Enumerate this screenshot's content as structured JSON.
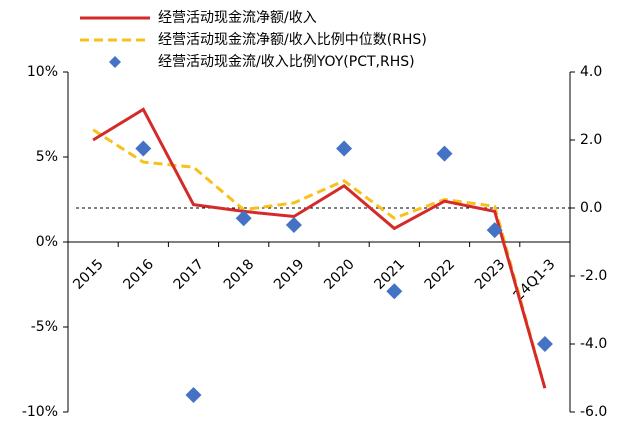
{
  "chart_data": {
    "type": "line",
    "categories": [
      "2015",
      "2016",
      "2017",
      "2018",
      "2019",
      "2020",
      "2021",
      "2022",
      "2023",
      "24Q1-3"
    ],
    "series": [
      {
        "name": "经营活动现金流净额/收入",
        "color": "#d42a2a",
        "type": "line",
        "dashed": false,
        "values": [
          6.0,
          7.8,
          2.2,
          1.8,
          1.5,
          3.3,
          0.8,
          2.4,
          1.8,
          -8.6
        ]
      },
      {
        "name": "经营活动现金流净额/收入比例中位数(RHS)",
        "color": "#f8c11a",
        "type": "line",
        "dashed": true,
        "axis": "y2",
        "values": [
          2.3,
          1.35,
          1.2,
          -0.05,
          0.15,
          0.8,
          -0.3,
          0.25,
          0.05,
          -5.3
        ]
      },
      {
        "name": "经营活动现金流/收入比例YOY(PCT,RHS)",
        "color": "#4472c4",
        "type": "scatter",
        "axis": "y2",
        "values": [
          null,
          1.75,
          -5.5,
          -0.3,
          -0.5,
          1.75,
          -2.45,
          1.6,
          -0.65,
          -4.0
        ]
      }
    ],
    "ylim": [
      -10,
      10
    ],
    "yticks": [
      {
        "value": -10,
        "label": "-10%"
      },
      {
        "value": -5,
        "label": "-5%"
      },
      {
        "value": 0,
        "label": "0%"
      },
      {
        "value": 5,
        "label": "5%"
      },
      {
        "value": 10,
        "label": "10%"
      }
    ],
    "y2lim": [
      -6,
      4
    ],
    "y2ticks": [
      {
        "value": -6,
        "label": "-6.0"
      },
      {
        "value": -4,
        "label": "-4.0"
      },
      {
        "value": -2,
        "label": "-2.0"
      },
      {
        "value": 0,
        "label": "0.0"
      },
      {
        "value": 2,
        "label": "2.0"
      },
      {
        "value": 4,
        "label": "4.0"
      }
    ],
    "reference_line": 0,
    "legend": "top"
  }
}
